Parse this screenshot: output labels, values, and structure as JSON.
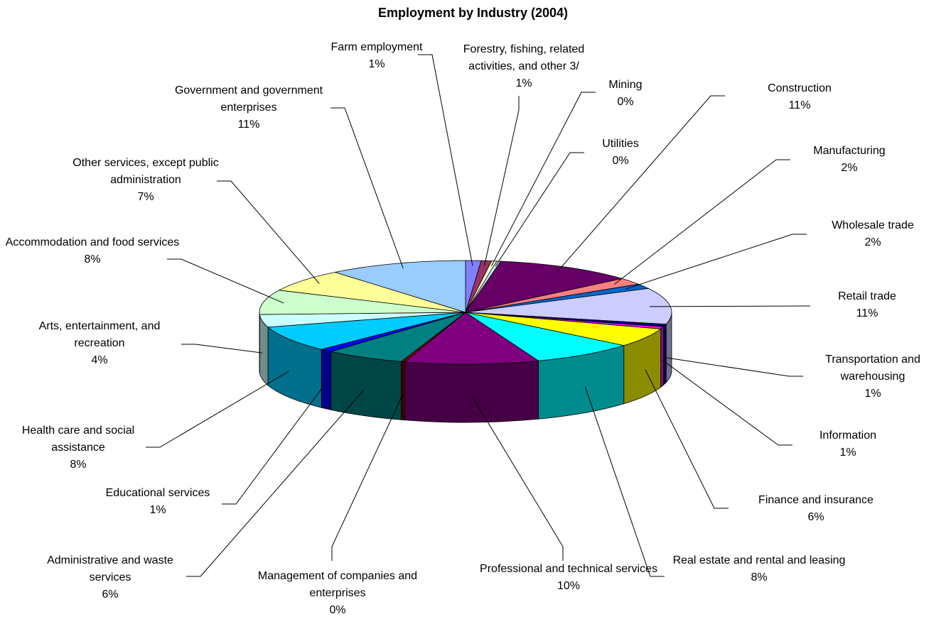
{
  "chart_data": {
    "type": "pie3d",
    "title": "Employment by Industry (2004)",
    "categories": [
      "Farm employment",
      "Forestry, fishing, related activities, and other 3/",
      "Mining",
      "Utilities",
      "Construction",
      "Manufacturing",
      "Wholesale trade",
      "Retail trade",
      "Transportation and warehousing",
      "Information",
      "Finance and insurance",
      "Real estate and rental and leasing",
      "Professional and technical services",
      "Management of companies and enterprises",
      "Administrative and waste services",
      "Educational services",
      "Health care and social assistance",
      "Arts, entertainment, and recreation",
      "Accommodation and food services",
      "Other services, except public administration",
      "Government and government enterprises"
    ],
    "values": [
      1.2,
      0.8,
      0.4,
      0.3,
      10.9,
      2.1,
      1.5,
      11.2,
      0.8,
      0.7,
      5.8,
      8.1,
      10.4,
      0.3,
      6.2,
      1.0,
      8.0,
      3.9,
      7.6,
      7.0,
      10.8
    ],
    "value_labels": [
      "1%",
      "1%",
      "0%",
      "0%",
      "11%",
      "2%",
      "2%",
      "11%",
      "1%",
      "1%",
      "6%",
      "8%",
      "10%",
      "0%",
      "6%",
      "1%",
      "8%",
      "4%",
      "8%",
      "7%",
      "11%"
    ],
    "colors": [
      "#8080ff",
      "#993366",
      "#ffffcc",
      "#ccffff",
      "#660066",
      "#ff8080",
      "#0066cc",
      "#ccccff",
      "#000080",
      "#ff00ff",
      "#ffff00",
      "#00ffff",
      "#800080",
      "#800000",
      "#008080",
      "#0000ff",
      "#00ccff",
      "#ccffff",
      "#ccffcc",
      "#ffff99",
      "#99ccff"
    ]
  }
}
